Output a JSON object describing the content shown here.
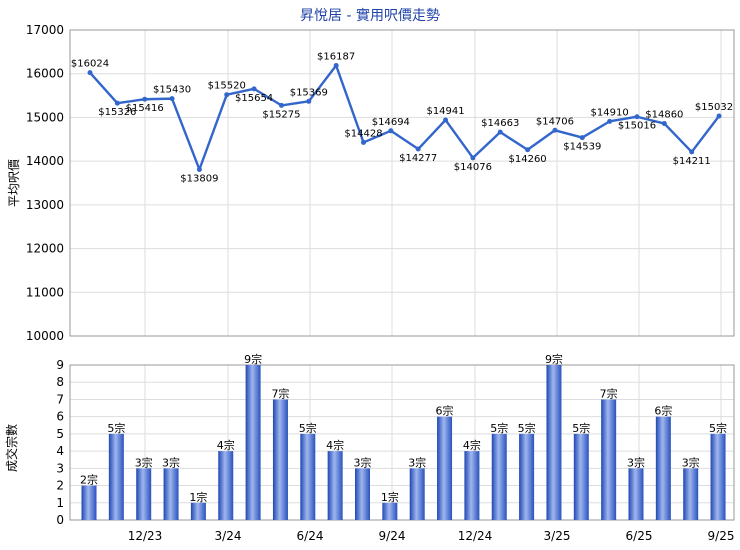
{
  "chart_data": [
    {
      "type": "line",
      "title": "昇悅居 - 實用呎價走勢",
      "ylabel": "平均呎價",
      "ylim": [
        10000,
        17000
      ],
      "yticks": [
        10000,
        11000,
        12000,
        13000,
        14000,
        15000,
        16000,
        17000
      ],
      "grid": true,
      "color": "#3366cc",
      "series": [
        {
          "values": [
            16024,
            15326,
            15416,
            15430,
            13809,
            15520,
            15654,
            15275,
            15369,
            16187,
            14428,
            14694,
            14277,
            14941,
            14076,
            14663,
            14260,
            14706,
            14539,
            14910,
            15016,
            14860,
            14211,
            15032
          ],
          "labels": [
            "$16024",
            "$15326",
            "$15416",
            "$15430",
            "$13809",
            "$15520",
            "$15654",
            "$15275",
            "$15369",
            "$16187",
            "$14428",
            "$14694",
            "$14277",
            "$14941",
            "$14076",
            "$14663",
            "$14260",
            "$14706",
            "$14539",
            "$14910",
            "$15016",
            "$14860",
            "$14211",
            "$15032"
          ]
        }
      ]
    },
    {
      "type": "bar",
      "ylabel": "成交宗數",
      "ylim": [
        0,
        9
      ],
      "yticks": [
        0,
        1,
        2,
        3,
        4,
        5,
        6,
        7,
        8,
        9
      ],
      "grid": true,
      "color": "#3366cc",
      "x_tick_labels": [
        "12/23",
        "3/24",
        "6/24",
        "9/24",
        "12/24",
        "3/25",
        "6/25",
        "9/25"
      ],
      "series": [
        {
          "values": [
            2,
            5,
            3,
            3,
            1,
            4,
            9,
            7,
            5,
            4,
            3,
            1,
            3,
            6,
            4,
            5,
            5,
            9,
            5,
            7,
            3,
            6,
            3,
            5
          ],
          "labels": [
            "2宗",
            "5宗",
            "3宗",
            "3宗",
            "1宗",
            "4宗",
            "9宗",
            "7宗",
            "5宗",
            "4宗",
            "3宗",
            "1宗",
            "3宗",
            "6宗",
            "4宗",
            "5宗",
            "5宗",
            "9宗",
            "5宗",
            "7宗",
            "3宗",
            "6宗",
            "3宗",
            "5宗"
          ]
        }
      ]
    }
  ]
}
